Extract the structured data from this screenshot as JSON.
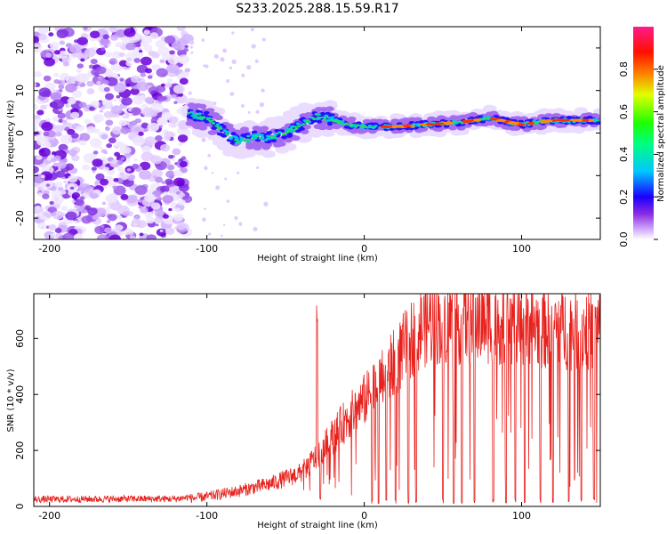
{
  "chart_data": [
    {
      "type": "heatmap",
      "title": "S233.2025.288.15.59.R17",
      "xlabel": "Height of straight line (km)",
      "ylabel": "Frequency (Hz)",
      "xlim": [
        -210,
        150
      ],
      "ylim": [
        -25,
        25
      ],
      "x_ticks": [
        -200,
        -100,
        0,
        100
      ],
      "y_ticks": [
        20,
        10,
        0,
        -10,
        -20
      ],
      "noise_region_x": [
        -210,
        -112
      ],
      "ridge": {
        "x": [
          -112,
          -100,
          -90,
          -80,
          -70,
          -60,
          -50,
          -40,
          -30,
          -20,
          -10,
          0,
          10,
          20,
          40,
          60,
          80,
          100,
          120,
          150
        ],
        "freq": [
          4.5,
          3.5,
          0.5,
          -2,
          -1,
          -1,
          0,
          2,
          4,
          3,
          2,
          1.5,
          1.5,
          1.5,
          2,
          2.5,
          3.5,
          2,
          3,
          3
        ]
      },
      "colorbar": {
        "label": "Normalized spectral amplitude",
        "range": [
          0.0,
          1.0
        ],
        "ticks": [
          "0.0",
          "0.2",
          "0.4",
          "0.6",
          "0.8"
        ]
      }
    },
    {
      "type": "line",
      "xlabel": "Height of straight line (km)",
      "ylabel": "SNR (10 * v/v)",
      "xlim": [
        -210,
        150
      ],
      "ylim": [
        0,
        760
      ],
      "x_ticks": [
        -200,
        -100,
        0,
        100
      ],
      "y_ticks": [
        0,
        200,
        400,
        600
      ],
      "color": "#e8211d",
      "envelope": {
        "x": [
          -210,
          -150,
          -120,
          -100,
          -80,
          -60,
          -40,
          -30,
          -20,
          -10,
          0,
          10,
          20,
          30,
          40,
          60,
          80,
          100,
          120,
          150
        ],
        "snr": [
          20,
          22,
          22,
          35,
          55,
          80,
          120,
          180,
          250,
          320,
          380,
          440,
          520,
          600,
          660,
          660,
          665,
          650,
          640,
          630
        ]
      },
      "dropout_x": [
        -28,
        5,
        9,
        14,
        20,
        28,
        33,
        50,
        57,
        62,
        70,
        82,
        90,
        96,
        102,
        112,
        120,
        130,
        138,
        146,
        148
      ],
      "spike_x": [
        -30,
        148
      ]
    }
  ]
}
